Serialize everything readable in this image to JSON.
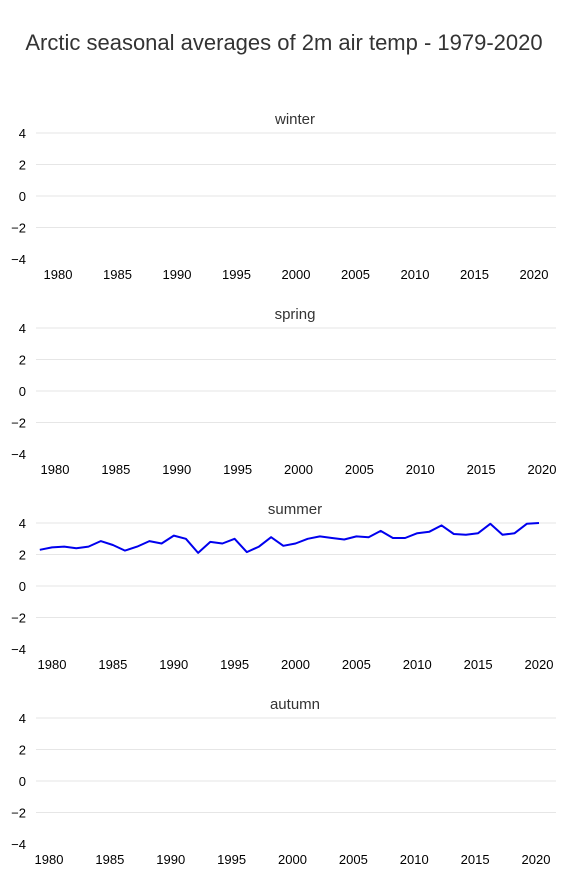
{
  "title": "Arctic seasonal averages of 2m air temp - 1979-2020",
  "chart_data": [
    {
      "type": "line",
      "title": "winter",
      "ylim": [
        -4,
        4
      ],
      "yticks": [
        4,
        2,
        0,
        -2,
        -4
      ],
      "xticks": [
        1980,
        1985,
        1990,
        1995,
        2000,
        2005,
        2010,
        2015,
        2020
      ],
      "series": [
        {
          "values": []
        }
      ]
    },
    {
      "type": "line",
      "title": "spring",
      "ylim": [
        -4,
        4
      ],
      "yticks": [
        4,
        2,
        0,
        -2,
        -4
      ],
      "xticks": [
        1980,
        1985,
        1990,
        1995,
        2000,
        2005,
        2010,
        2015,
        2020
      ],
      "series": [
        {
          "values": []
        }
      ]
    },
    {
      "type": "line",
      "title": "summer",
      "ylim": [
        -4,
        4
      ],
      "yticks": [
        4,
        2,
        0,
        -2,
        -4
      ],
      "xticks": [
        1980,
        1985,
        1990,
        1995,
        2000,
        2005,
        2010,
        2015,
        2020
      ],
      "series": [
        {
          "color": "#0000ee",
          "x": [
            1979,
            1980,
            1981,
            1982,
            1983,
            1984,
            1985,
            1986,
            1987,
            1988,
            1989,
            1990,
            1991,
            1992,
            1993,
            1994,
            1995,
            1996,
            1997,
            1998,
            1999,
            2000,
            2001,
            2002,
            2003,
            2004,
            2005,
            2006,
            2007,
            2008,
            2009,
            2010,
            2011,
            2012,
            2013,
            2014,
            2015,
            2016,
            2017,
            2018,
            2019,
            2020
          ],
          "values": [
            2.3,
            2.45,
            2.5,
            2.4,
            2.5,
            2.85,
            2.6,
            2.25,
            2.5,
            2.85,
            2.7,
            3.2,
            3.0,
            2.1,
            2.8,
            2.7,
            3.0,
            2.15,
            2.5,
            3.1,
            2.55,
            2.7,
            3.0,
            3.15,
            3.05,
            2.95,
            3.15,
            3.1,
            3.5,
            3.05,
            3.05,
            3.35,
            3.45,
            3.85,
            3.3,
            3.25,
            3.35,
            3.95,
            3.25,
            3.35,
            3.95,
            4.05
          ]
        }
      ]
    },
    {
      "type": "line",
      "title": "autumn",
      "ylim": [
        -4,
        4
      ],
      "yticks": [
        4,
        2,
        0,
        -2,
        -4
      ],
      "xticks": [
        1980,
        1985,
        1990,
        1995,
        2000,
        2005,
        2010,
        2015,
        2020
      ],
      "series": [
        {
          "values": []
        }
      ]
    }
  ]
}
